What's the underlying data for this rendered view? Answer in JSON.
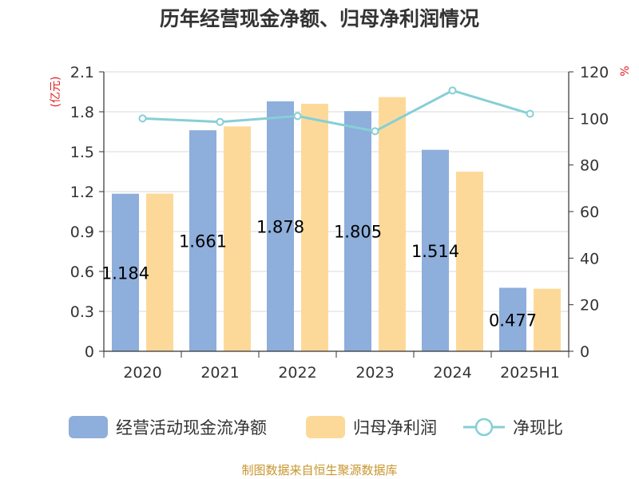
{
  "chart_data": {
    "type": "bar",
    "title": "历年经营现金净额、归母净利润情况",
    "categories": [
      "2020",
      "2021",
      "2022",
      "2023",
      "2024",
      "2025H1"
    ],
    "y_left": {
      "unit": "(亿元)",
      "ylim": [
        0,
        2.1
      ],
      "ticks": [
        "0",
        "0.3",
        "0.6",
        "0.9",
        "1.2",
        "1.5",
        "1.8",
        "2.1"
      ]
    },
    "y_right": {
      "unit": "%",
      "ylim": [
        0,
        120
      ],
      "ticks": [
        "0",
        "20",
        "40",
        "60",
        "80",
        "100",
        "120"
      ]
    },
    "series": [
      {
        "name": "经营活动现金流净额",
        "type": "bar",
        "axis": "left",
        "color": "#8eaedb",
        "values": [
          1.184,
          1.661,
          1.878,
          1.805,
          1.514,
          0.477
        ],
        "labels": [
          "1.184",
          "1.661",
          "1.878",
          "1.805",
          "1.514",
          "0.477"
        ]
      },
      {
        "name": "归母净利润",
        "type": "bar",
        "axis": "left",
        "color": "#fdd999",
        "values": [
          1.185,
          1.69,
          1.86,
          1.91,
          1.35,
          0.47
        ]
      },
      {
        "name": "净现比",
        "type": "line",
        "axis": "right",
        "color": "#86cfd6",
        "values": [
          100,
          98.5,
          101,
          94.5,
          112,
          102
        ]
      }
    ],
    "grid": true,
    "legend_position": "bottom"
  },
  "footer": {
    "source": "制图数据来自恒生聚源数据库"
  }
}
